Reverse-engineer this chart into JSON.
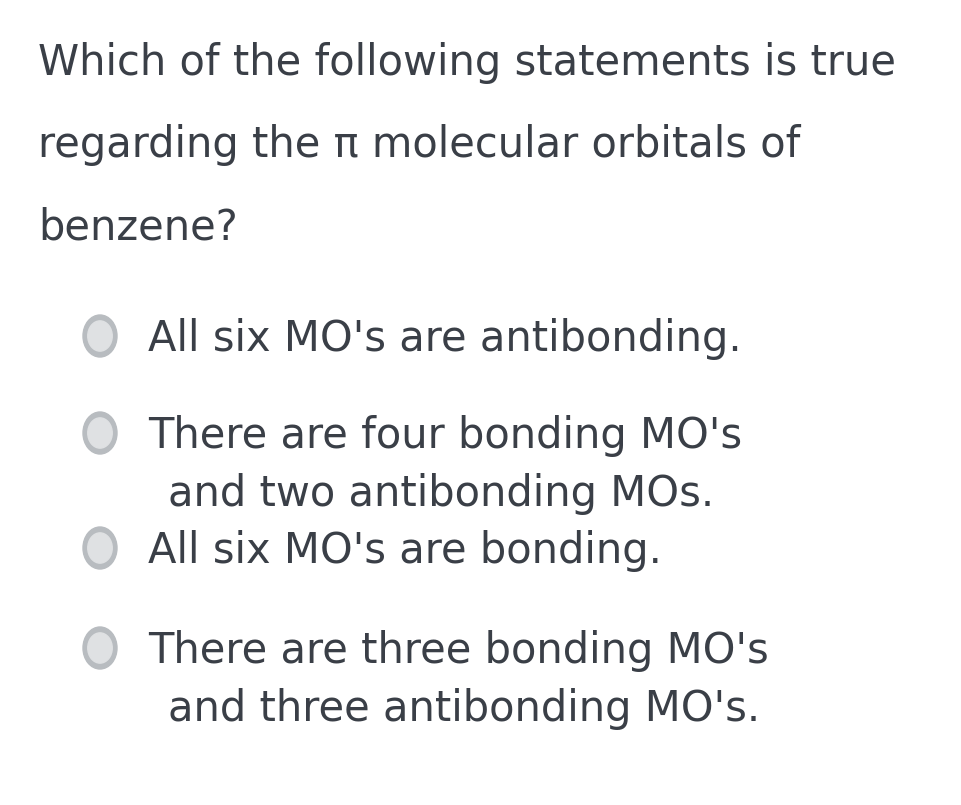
{
  "background_color": "#ffffff",
  "text_color": "#3a3f47",
  "question_lines": [
    "Which of the following statements is true",
    "regarding the π molecular orbitals of",
    "benzene?"
  ],
  "options": [
    {
      "line1": "All six MO's are antibonding.",
      "line2": null
    },
    {
      "line1": "There are four bonding MO's",
      "line2": "and two antibonding MOs."
    },
    {
      "line1": "All six MO's are bonding.",
      "line2": null
    },
    {
      "line1": "There are three bonding MO's",
      "line2": "and three antibonding MO's."
    }
  ],
  "question_fontsize": 30,
  "option_fontsize": 30,
  "radio_color_outer": "#b8bcc0",
  "radio_color_inner": "#dfe1e3",
  "fig_width": 9.61,
  "fig_height": 8.05,
  "dpi": 100
}
